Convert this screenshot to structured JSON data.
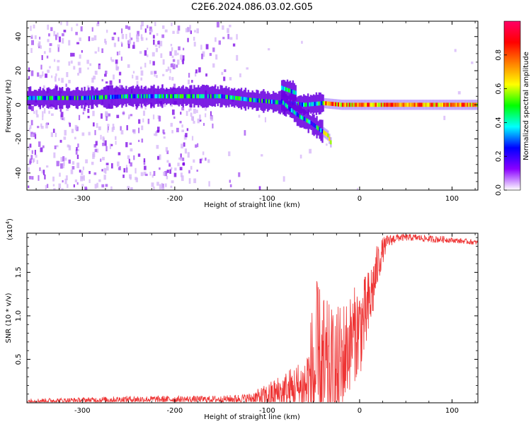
{
  "title": "C2E6.2024.086.03.02.G05",
  "chart_data": [
    {
      "type": "heatmap",
      "name": "spectrogram",
      "xlabel": "Height of straight line (km)",
      "ylabel": "Frequency (Hz)",
      "xlim": [
        -360,
        128
      ],
      "ylim": [
        -50,
        49
      ],
      "xticks": [
        -300,
        -200,
        -100,
        0,
        100
      ],
      "yticks": [
        -40,
        -20,
        0,
        20,
        40
      ],
      "colorbar": {
        "label": "Normalized spectral amplitude",
        "range": [
          0,
          1
        ],
        "ticks": [
          0.0,
          0.2,
          0.4,
          0.6,
          0.8
        ],
        "tick_labels": [
          "0.0",
          "0.2",
          "0.4",
          "0.6",
          "0.8"
        ],
        "colors": [
          "#ffffff",
          "#8a00ff",
          "#0000ff",
          "#00ffff",
          "#00ff00",
          "#ffff00",
          "#ff8000",
          "#ff0000",
          "#ff0066"
        ]
      },
      "features": [
        {
          "name": "carrier-trace",
          "x": [
            -360,
            -300,
            -250,
            -200,
            -150,
            -120,
            -100,
            -80,
            -60,
            -40,
            -20,
            0,
            30,
            60,
            90,
            128
          ],
          "freq": [
            4,
            4,
            5,
            5,
            5,
            3,
            2,
            1,
            0,
            1,
            0,
            0,
            0,
            0,
            0,
            0
          ]
        },
        {
          "name": "diverging-branch",
          "x": [
            -85,
            -75,
            -65,
            -55,
            -45,
            -35,
            -32
          ],
          "freq": [
            2,
            -3,
            -7,
            -10,
            -14,
            -18,
            -22
          ]
        },
        {
          "name": "upper-branch",
          "x": [
            -85,
            -80,
            -75,
            -70
          ],
          "freq": [
            10,
            9,
            8,
            7
          ]
        }
      ]
    },
    {
      "type": "line",
      "name": "snr",
      "xlabel": "Height of straight line (km)",
      "ylabel": "SNR (10 * v/v)",
      "scale_label": "(x10",
      "scale_exp": "4",
      "scale_close": ")",
      "xlim": [
        -360,
        128
      ],
      "ylim": [
        0,
        1.95
      ],
      "xticks": [
        -300,
        -200,
        -100,
        0,
        100
      ],
      "yticks": [
        0.5,
        1.0,
        1.5
      ],
      "ytick_labels": [
        "0.5",
        "1.0",
        "1.5"
      ],
      "color": "#ee3333",
      "envelope": {
        "x": [
          -360,
          -300,
          -250,
          -200,
          -150,
          -120,
          -110,
          -100,
          -90,
          -80,
          -70,
          -60,
          -55,
          -52,
          -50,
          -45,
          -40,
          -35,
          -30,
          -25,
          -20,
          -15,
          -10,
          -5,
          0,
          5,
          10,
          15,
          20,
          25,
          30,
          40,
          50,
          60,
          70,
          80,
          90,
          100,
          110,
          120,
          128
        ],
        "base": [
          0.02,
          0.03,
          0.04,
          0.04,
          0.04,
          0.05,
          0.06,
          0.07,
          0.1,
          0.12,
          0.15,
          0.18,
          0.22,
          0.28,
          0.3,
          0.32,
          0.3,
          0.28,
          0.25,
          0.28,
          0.4,
          0.6,
          0.7,
          0.8,
          0.85,
          0.95,
          1.1,
          1.35,
          1.6,
          1.75,
          1.85,
          1.9,
          1.9,
          1.9,
          1.89,
          1.88,
          1.88,
          1.87,
          1.86,
          1.85,
          1.84
        ],
        "spread": [
          0.03,
          0.03,
          0.04,
          0.04,
          0.04,
          0.06,
          0.1,
          0.15,
          0.2,
          0.25,
          0.3,
          0.35,
          0.55,
          0.8,
          1.05,
          1.1,
          1.0,
          0.9,
          0.85,
          0.8,
          0.8,
          0.6,
          0.55,
          0.55,
          0.55,
          0.5,
          0.45,
          0.35,
          0.25,
          0.15,
          0.08,
          0.05,
          0.04,
          0.04,
          0.04,
          0.04,
          0.04,
          0.03,
          0.03,
          0.03,
          0.03
        ]
      }
    }
  ]
}
